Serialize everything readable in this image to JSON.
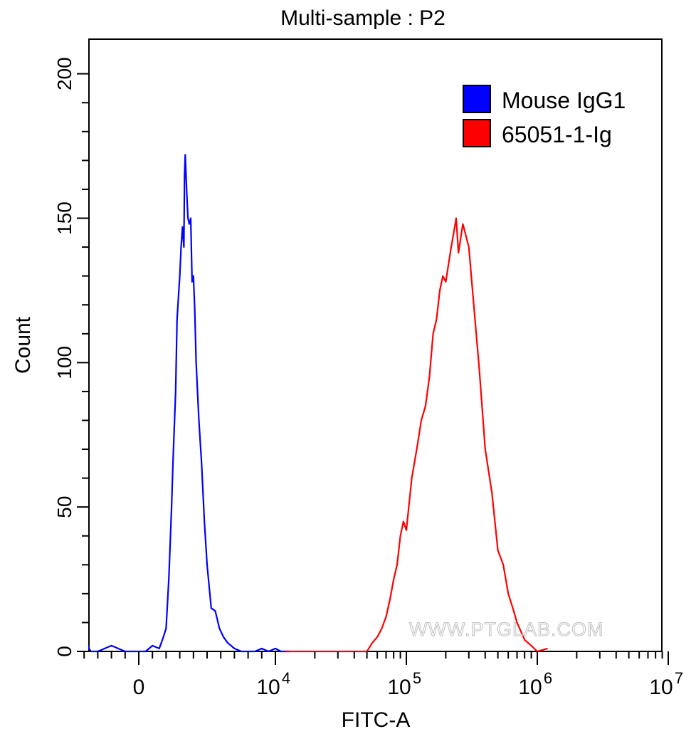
{
  "chart_data": {
    "type": "line",
    "title": "Multi-sample : P2",
    "xlabel": "FITC-A",
    "ylabel": "Count",
    "x_scale": "biexponential (linear near 0, log above 10^4)",
    "xlim": [
      -4000,
      10000000
    ],
    "ylim": [
      0,
      212
    ],
    "y_ticks": [
      0,
      50,
      100,
      150,
      200
    ],
    "y_tick_labels": [
      "0",
      "50",
      "100",
      "150",
      "200"
    ],
    "x_tick_labels": [
      {
        "base": "0",
        "exp": ""
      },
      {
        "base": "10",
        "exp": "4"
      },
      {
        "base": "10",
        "exp": "5"
      },
      {
        "base": "10",
        "exp": "6"
      },
      {
        "base": "10",
        "exp": "7"
      }
    ],
    "legend_position": "top-right",
    "grid": false,
    "watermark": "WWW.PTGLAB.COM",
    "series": [
      {
        "name": "Mouse IgG1",
        "color": "#0000ff",
        "x": [
          -4000,
          -3900,
          -3500,
          -3000,
          -2000,
          -1000,
          -500,
          0,
          500,
          1000,
          1500,
          1800,
          2000,
          2200,
          2400,
          2500,
          2700,
          2800,
          3000,
          3100,
          3200,
          3300,
          3350,
          3400,
          3500,
          3600,
          3700,
          3800,
          3900,
          4000,
          4100,
          4200,
          4400,
          4600,
          4800,
          5000,
          5300,
          5600,
          5900,
          6200,
          6500,
          7000,
          7500,
          8000,
          8500,
          9000,
          9500,
          10000,
          11000,
          13000
        ],
        "y": [
          2,
          1,
          0,
          0,
          2,
          0,
          0,
          0,
          0,
          2,
          1,
          5,
          8,
          25,
          50,
          65,
          90,
          115,
          130,
          140,
          147,
          140,
          165,
          172,
          160,
          150,
          148,
          150,
          128,
          130,
          118,
          100,
          80,
          65,
          45,
          30,
          15,
          14,
          8,
          5,
          3,
          1,
          0,
          0,
          0,
          1,
          0,
          1,
          0,
          0
        ]
      },
      {
        "name": "65051-1-Ig",
        "color": "#ff0000",
        "x": [
          12000,
          30000,
          50000,
          55000,
          60000,
          65000,
          70000,
          75000,
          80000,
          85000,
          90000,
          95000,
          100000,
          110000,
          120000,
          130000,
          140000,
          150000,
          160000,
          170000,
          180000,
          190000,
          200000,
          220000,
          230000,
          240000,
          250000,
          270000,
          300000,
          330000,
          360000,
          400000,
          450000,
          500000,
          550000,
          600000,
          650000,
          700000,
          800000,
          900000,
          1000000,
          1200000
        ],
        "y": [
          0,
          0,
          0,
          3,
          5,
          8,
          12,
          18,
          25,
          30,
          40,
          45,
          42,
          60,
          70,
          80,
          85,
          95,
          110,
          115,
          125,
          130,
          128,
          140,
          145,
          150,
          138,
          148,
          140,
          118,
          98,
          70,
          55,
          35,
          30,
          20,
          15,
          10,
          4,
          2,
          0,
          1
        ]
      }
    ]
  }
}
